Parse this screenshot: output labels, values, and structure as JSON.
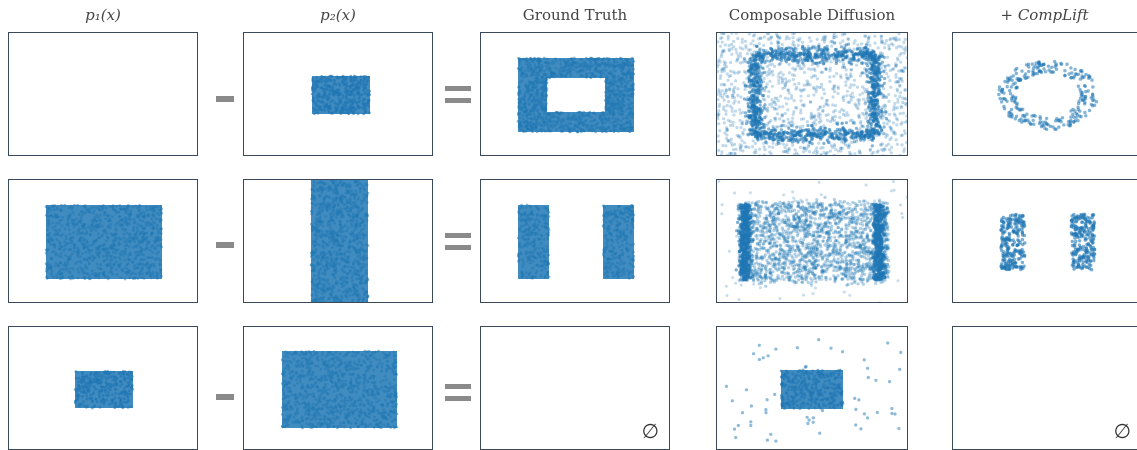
{
  "headers": {
    "col1": "p₁(x)",
    "col2": "p₂(x)",
    "col3": "Ground Truth",
    "col4": "Composable Diffusion",
    "col5": "+ CompLift"
  },
  "operators": {
    "minus": "-",
    "equals": "="
  },
  "empty_set_symbol": "∅",
  "colors": {
    "point": "#1f77b4",
    "border": "#3a4a5a",
    "operator": "#8a8a8a"
  }
}
